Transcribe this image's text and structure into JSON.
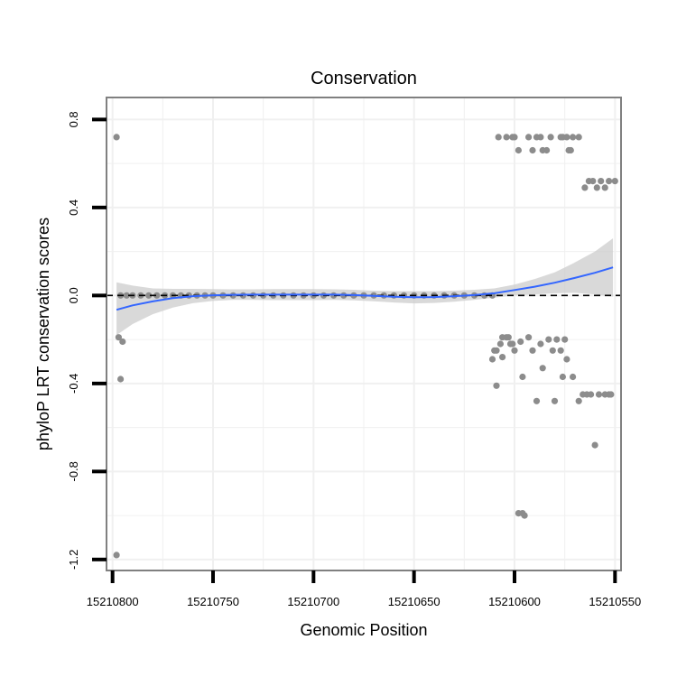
{
  "chart_data": {
    "type": "scatter",
    "title": "Conservation",
    "xlabel": "Genomic Position",
    "ylabel": "phyloP LRT conservation scores",
    "x_reversed": true,
    "xlim": [
      15210803,
      15210547
    ],
    "ylim": [
      -1.25,
      0.9
    ],
    "x_ticks": [
      15210800,
      15210750,
      15210700,
      15210650,
      15210600,
      15210550
    ],
    "y_ticks": [
      -1.2,
      -0.8,
      -0.4,
      0.0,
      0.4,
      0.8
    ],
    "x_tick_labels": [
      "15210800",
      "15210750",
      "15210700",
      "15210650",
      "15210600",
      "15210550"
    ],
    "y_tick_labels": [
      "-1.2",
      "-0.8",
      "-0.4",
      "0.0",
      "0.4",
      "0.8"
    ],
    "grid": true,
    "reference_line": {
      "y": 0.0,
      "style": "dashed",
      "color": "#000000"
    },
    "colors": {
      "points": "#8c8c8c",
      "smooth": "#3366ff",
      "band": "#cccccc",
      "panel_border": "#808080",
      "grid": "#f0f0f0"
    },
    "points": [
      {
        "x": 15210798,
        "y": 0.72
      },
      {
        "x": 15210798,
        "y": -1.18
      },
      {
        "x": 15210797,
        "y": -0.19
      },
      {
        "x": 15210795,
        "y": -0.21
      },
      {
        "x": 15210796,
        "y": -0.38
      },
      {
        "x": 15210796,
        "y": 0.0
      },
      {
        "x": 15210793,
        "y": 0.0
      },
      {
        "x": 15210790,
        "y": 0.0
      },
      {
        "x": 15210786,
        "y": 0.0
      },
      {
        "x": 15210782,
        "y": 0.0
      },
      {
        "x": 15210778,
        "y": 0.0
      },
      {
        "x": 15210774,
        "y": 0.0
      },
      {
        "x": 15210770,
        "y": 0.0
      },
      {
        "x": 15210766,
        "y": 0.0
      },
      {
        "x": 15210762,
        "y": 0.0
      },
      {
        "x": 15210758,
        "y": 0.0
      },
      {
        "x": 15210754,
        "y": 0.0
      },
      {
        "x": 15210750,
        "y": 0.0
      },
      {
        "x": 15210745,
        "y": 0.0
      },
      {
        "x": 15210740,
        "y": 0.0
      },
      {
        "x": 15210735,
        "y": 0.0
      },
      {
        "x": 15210730,
        "y": 0.0
      },
      {
        "x": 15210725,
        "y": 0.0
      },
      {
        "x": 15210720,
        "y": 0.0
      },
      {
        "x": 15210715,
        "y": 0.0
      },
      {
        "x": 15210710,
        "y": 0.0
      },
      {
        "x": 15210705,
        "y": 0.0
      },
      {
        "x": 15210700,
        "y": 0.0
      },
      {
        "x": 15210695,
        "y": 0.0
      },
      {
        "x": 15210690,
        "y": 0.0
      },
      {
        "x": 15210685,
        "y": 0.0
      },
      {
        "x": 15210680,
        "y": 0.0
      },
      {
        "x": 15210675,
        "y": 0.0
      },
      {
        "x": 15210670,
        "y": 0.0
      },
      {
        "x": 15210665,
        "y": 0.0
      },
      {
        "x": 15210660,
        "y": 0.0
      },
      {
        "x": 15210655,
        "y": 0.0
      },
      {
        "x": 15210650,
        "y": 0.0
      },
      {
        "x": 15210645,
        "y": 0.0
      },
      {
        "x": 15210640,
        "y": 0.0
      },
      {
        "x": 15210635,
        "y": 0.0
      },
      {
        "x": 15210630,
        "y": 0.0
      },
      {
        "x": 15210625,
        "y": 0.0
      },
      {
        "x": 15210620,
        "y": 0.0
      },
      {
        "x": 15210615,
        "y": 0.0
      },
      {
        "x": 15210611,
        "y": 0.0
      },
      {
        "x": 15210608,
        "y": 0.72
      },
      {
        "x": 15210604,
        "y": 0.72
      },
      {
        "x": 15210601,
        "y": 0.72
      },
      {
        "x": 15210600,
        "y": 0.72
      },
      {
        "x": 15210598,
        "y": 0.66
      },
      {
        "x": 15210593,
        "y": 0.72
      },
      {
        "x": 15210591,
        "y": 0.66
      },
      {
        "x": 15210589,
        "y": 0.72
      },
      {
        "x": 15210587,
        "y": 0.72
      },
      {
        "x": 15210586,
        "y": 0.66
      },
      {
        "x": 15210584,
        "y": 0.66
      },
      {
        "x": 15210582,
        "y": 0.72
      },
      {
        "x": 15210577,
        "y": 0.72
      },
      {
        "x": 15210576,
        "y": 0.72
      },
      {
        "x": 15210574,
        "y": 0.72
      },
      {
        "x": 15210573,
        "y": 0.66
      },
      {
        "x": 15210572,
        "y": 0.66
      },
      {
        "x": 15210571,
        "y": 0.72
      },
      {
        "x": 15210568,
        "y": 0.72
      },
      {
        "x": 15210565,
        "y": 0.49
      },
      {
        "x": 15210563,
        "y": 0.52
      },
      {
        "x": 15210561,
        "y": 0.52
      },
      {
        "x": 15210559,
        "y": 0.49
      },
      {
        "x": 15210557,
        "y": 0.52
      },
      {
        "x": 15210555,
        "y": 0.49
      },
      {
        "x": 15210553,
        "y": 0.52
      },
      {
        "x": 15210550,
        "y": 0.52
      },
      {
        "x": 15210611,
        "y": -0.29
      },
      {
        "x": 15210610,
        "y": -0.25
      },
      {
        "x": 15210609,
        "y": -0.25
      },
      {
        "x": 15210609,
        "y": -0.41
      },
      {
        "x": 15210607,
        "y": -0.22
      },
      {
        "x": 15210606,
        "y": -0.28
      },
      {
        "x": 15210606,
        "y": -0.19
      },
      {
        "x": 15210604,
        "y": -0.19
      },
      {
        "x": 15210603,
        "y": -0.19
      },
      {
        "x": 15210602,
        "y": -0.22
      },
      {
        "x": 15210601,
        "y": -0.22
      },
      {
        "x": 15210600,
        "y": -0.25
      },
      {
        "x": 15210598,
        "y": -0.99
      },
      {
        "x": 15210596,
        "y": -0.99
      },
      {
        "x": 15210595,
        "y": -1.0
      },
      {
        "x": 15210597,
        "y": -0.21
      },
      {
        "x": 15210596,
        "y": -0.37
      },
      {
        "x": 15210593,
        "y": -0.19
      },
      {
        "x": 15210591,
        "y": -0.25
      },
      {
        "x": 15210589,
        "y": -0.48
      },
      {
        "x": 15210587,
        "y": -0.22
      },
      {
        "x": 15210586,
        "y": -0.33
      },
      {
        "x": 15210583,
        "y": -0.2
      },
      {
        "x": 15210581,
        "y": -0.25
      },
      {
        "x": 15210580,
        "y": -0.48
      },
      {
        "x": 15210579,
        "y": -0.2
      },
      {
        "x": 15210577,
        "y": -0.25
      },
      {
        "x": 15210576,
        "y": -0.37
      },
      {
        "x": 15210575,
        "y": -0.2
      },
      {
        "x": 15210574,
        "y": -0.29
      },
      {
        "x": 15210571,
        "y": -0.37
      },
      {
        "x": 15210568,
        "y": -0.48
      },
      {
        "x": 15210566,
        "y": -0.45
      },
      {
        "x": 15210564,
        "y": -0.45
      },
      {
        "x": 15210562,
        "y": -0.45
      },
      {
        "x": 15210560,
        "y": -0.68
      },
      {
        "x": 15210558,
        "y": -0.45
      },
      {
        "x": 15210555,
        "y": -0.45
      },
      {
        "x": 15210553,
        "y": -0.45
      },
      {
        "x": 15210552,
        "y": -0.45
      }
    ],
    "smooth": {
      "method": "loess",
      "x": [
        15210798,
        15210790,
        15210780,
        15210770,
        15210760,
        15210750,
        15210740,
        15210730,
        15210720,
        15210710,
        15210700,
        15210690,
        15210680,
        15210670,
        15210660,
        15210650,
        15210640,
        15210630,
        15210620,
        15210610,
        15210600,
        15210590,
        15210580,
        15210570,
        15210560,
        15210551
      ],
      "y": [
        -0.065,
        -0.045,
        -0.027,
        -0.012,
        -0.003,
        0.001,
        0.003,
        0.004,
        0.004,
        0.004,
        0.004,
        0.004,
        0.002,
        -0.002,
        -0.006,
        -0.008,
        -0.007,
        -0.003,
        0.002,
        0.01,
        0.025,
        0.04,
        0.058,
        0.08,
        0.103,
        0.128
      ],
      "lower": [
        -0.18,
        -0.13,
        -0.085,
        -0.055,
        -0.035,
        -0.025,
        -0.02,
        -0.02,
        -0.021,
        -0.021,
        -0.021,
        -0.02,
        -0.022,
        -0.026,
        -0.032,
        -0.036,
        -0.034,
        -0.028,
        -0.02,
        -0.01,
        0.0,
        0.005,
        0.01,
        0.012,
        0.005,
        -0.005
      ],
      "upper": [
        0.06,
        0.045,
        0.032,
        0.03,
        0.03,
        0.029,
        0.028,
        0.028,
        0.029,
        0.029,
        0.029,
        0.028,
        0.026,
        0.022,
        0.02,
        0.02,
        0.02,
        0.022,
        0.026,
        0.032,
        0.05,
        0.075,
        0.105,
        0.15,
        0.2,
        0.26
      ]
    }
  }
}
